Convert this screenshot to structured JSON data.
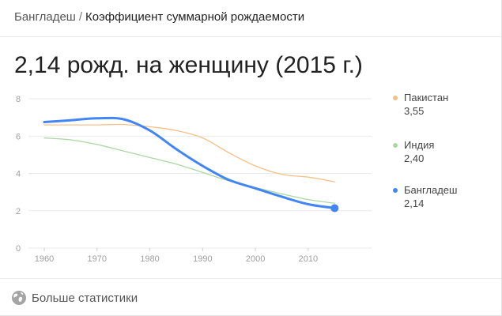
{
  "breadcrumb": {
    "country": "Бангладеш",
    "separator": "/",
    "indicator": "Коэффициент суммарной рождаемости"
  },
  "headline": "2,14 рожд. на женщину (2015 г.)",
  "footer": {
    "label": "Больше статистики",
    "icon": "globe-icon"
  },
  "colors": {
    "pakistan": "#f4c088",
    "india": "#a9d8a1",
    "bangladesh": "#4285f4",
    "grid": "#e9e9e9",
    "tick_text": "#9e9e9e"
  },
  "chart_data": {
    "type": "line",
    "title": "",
    "xlabel": "",
    "ylabel": "",
    "xlim": [
      1957,
      2022
    ],
    "ylim": [
      0,
      8
    ],
    "x_ticks": [
      1960,
      1970,
      1980,
      1990,
      2000,
      2010
    ],
    "y_ticks": [
      0,
      2,
      4,
      6,
      8
    ],
    "x_tick_labels": [
      "1960",
      "1970",
      "1980",
      "1990",
      "2000",
      "2010"
    ],
    "y_tick_labels": [
      "0",
      "2",
      "4",
      "6",
      "8"
    ],
    "grid": true,
    "legend_position": "right",
    "series": [
      {
        "name": "Пакистан",
        "value_label": "3,55",
        "color_key": "pakistan",
        "highlight": false,
        "points": [
          [
            1960,
            6.6
          ],
          [
            1965,
            6.6
          ],
          [
            1970,
            6.6
          ],
          [
            1975,
            6.62
          ],
          [
            1980,
            6.5
          ],
          [
            1985,
            6.3
          ],
          [
            1990,
            5.9
          ],
          [
            1995,
            5.1
          ],
          [
            2000,
            4.4
          ],
          [
            2005,
            3.95
          ],
          [
            2010,
            3.8
          ],
          [
            2015,
            3.55
          ]
        ]
      },
      {
        "name": "Индия",
        "value_label": "2,40",
        "color_key": "india",
        "highlight": false,
        "points": [
          [
            1960,
            5.9
          ],
          [
            1965,
            5.8
          ],
          [
            1970,
            5.55
          ],
          [
            1975,
            5.2
          ],
          [
            1980,
            4.85
          ],
          [
            1985,
            4.5
          ],
          [
            1990,
            4.05
          ],
          [
            1995,
            3.6
          ],
          [
            2000,
            3.25
          ],
          [
            2005,
            2.9
          ],
          [
            2010,
            2.6
          ],
          [
            2015,
            2.4
          ]
        ]
      },
      {
        "name": "Бангладеш",
        "value_label": "2,14",
        "color_key": "bangladesh",
        "highlight": true,
        "points": [
          [
            1960,
            6.75
          ],
          [
            1965,
            6.85
          ],
          [
            1970,
            6.95
          ],
          [
            1975,
            6.9
          ],
          [
            1980,
            6.3
          ],
          [
            1985,
            5.3
          ],
          [
            1990,
            4.4
          ],
          [
            1995,
            3.65
          ],
          [
            2000,
            3.2
          ],
          [
            2005,
            2.75
          ],
          [
            2010,
            2.35
          ],
          [
            2015,
            2.14
          ]
        ]
      }
    ]
  }
}
